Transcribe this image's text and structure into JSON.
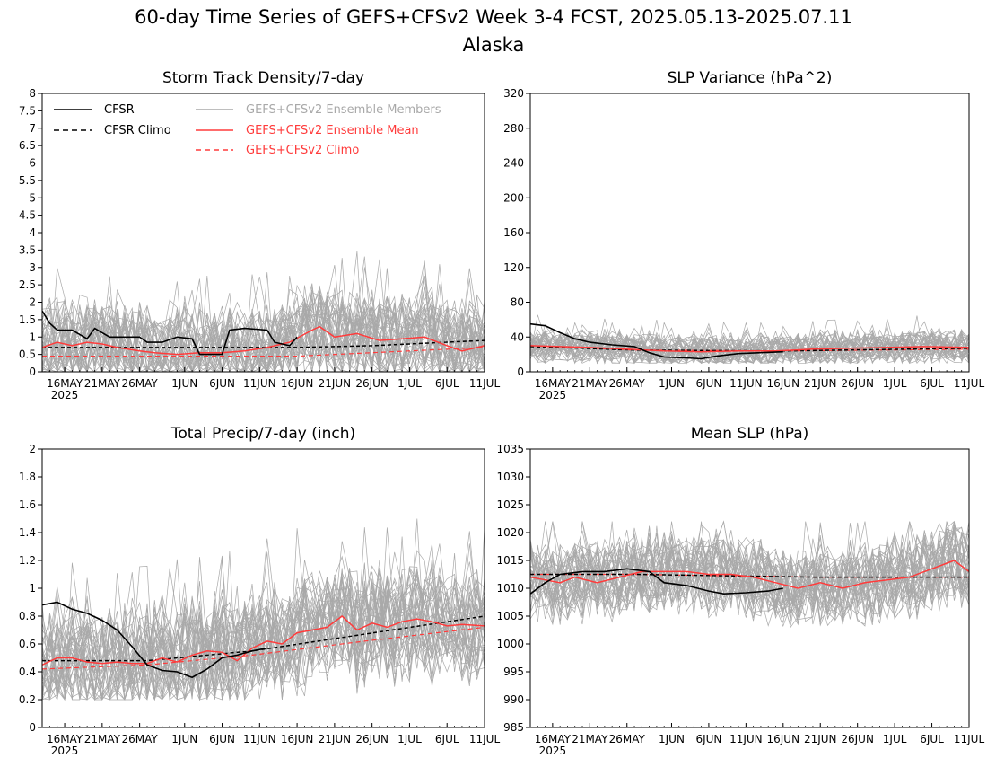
{
  "figure": {
    "title": "60-day Time Series of GEFS+CFSv2 Week 3-4 FCST, 2025.05.13-2025.07.11",
    "subtitle": "Alaska"
  },
  "colors": {
    "cfsr": "#000000",
    "members": "#a9a9a9",
    "ens_mean": "#ff3b3b",
    "gefs_climo": "#ff3b3b",
    "frame": "#000000"
  },
  "legend": {
    "cfsr": "CFSR",
    "cfsr_climo": "CFSR Climo",
    "members": "GEFS+CFSv2 Ensemble Members",
    "ens_mean": "GEFS+CFSv2 Ensemble Mean",
    "gefs_climo": "GEFS+CFSv2 Climo"
  },
  "x_axis": {
    "tick_labels": [
      "16MAY",
      "21MAY",
      "26MAY",
      "1JUN",
      "6JUN",
      "11JUN",
      "16JUN",
      "21JUN",
      "26JUN",
      "1JUL",
      "6JUL",
      "11JUL"
    ],
    "year_label": "2025"
  },
  "chart_data": [
    {
      "type": "line",
      "title": "Storm Track Density/7-day",
      "x_range": [
        "2025-05-13",
        "2025-07-11"
      ],
      "ylim": [
        0,
        8
      ],
      "y_ticks": [
        "0",
        "0.5",
        "1",
        "1.5",
        "2",
        "2.5",
        "3",
        "3.5",
        "4",
        "4.5",
        "5",
        "5.5",
        "6",
        "6.5",
        "7",
        "7.5",
        "8"
      ],
      "members_envelope": {
        "count": 40,
        "typical_min": 0.0,
        "typical_max": 3.0,
        "peak": 4.3
      },
      "series": [
        {
          "name": "CFSR",
          "points": [
            [
              "2025-05-13",
              1.75
            ],
            [
              "2025-05-14",
              1.4
            ],
            [
              "2025-05-15",
              1.2
            ],
            [
              "2025-05-17",
              1.2
            ],
            [
              "2025-05-19",
              0.95
            ],
            [
              "2025-05-20",
              1.25
            ],
            [
              "2025-05-22",
              1.0
            ],
            [
              "2025-05-26",
              1.0
            ],
            [
              "2025-05-27",
              0.85
            ],
            [
              "2025-05-29",
              0.85
            ],
            [
              "2025-05-31",
              1.0
            ],
            [
              "2025-06-02",
              0.95
            ],
            [
              "2025-06-03",
              0.5
            ],
            [
              "2025-06-06",
              0.5
            ],
            [
              "2025-06-07",
              1.2
            ],
            [
              "2025-06-09",
              1.25
            ],
            [
              "2025-06-12",
              1.2
            ],
            [
              "2025-06-13",
              0.85
            ],
            [
              "2025-06-15",
              0.75
            ],
            [
              "2025-06-16",
              1.0
            ]
          ]
        },
        {
          "name": "CFSR Climo",
          "points": [
            [
              "2025-05-13",
              0.7
            ],
            [
              "2025-05-26",
              0.7
            ],
            [
              "2025-06-16",
              0.7
            ],
            [
              "2025-06-26",
              0.75
            ],
            [
              "2025-07-11",
              0.9
            ]
          ]
        },
        {
          "name": "GEFS+CFSv2 Ensemble Mean",
          "points": [
            [
              "2025-05-13",
              0.7
            ],
            [
              "2025-05-15",
              0.85
            ],
            [
              "2025-05-17",
              0.75
            ],
            [
              "2025-05-19",
              0.85
            ],
            [
              "2025-05-21",
              0.8
            ],
            [
              "2025-05-23",
              0.7
            ],
            [
              "2025-05-26",
              0.6
            ],
            [
              "2025-05-28",
              0.55
            ],
            [
              "2025-05-31",
              0.5
            ],
            [
              "2025-06-03",
              0.55
            ],
            [
              "2025-06-06",
              0.55
            ],
            [
              "2025-06-09",
              0.6
            ],
            [
              "2025-06-12",
              0.7
            ],
            [
              "2025-06-15",
              0.85
            ],
            [
              "2025-06-18",
              1.2
            ],
            [
              "2025-06-19",
              1.3
            ],
            [
              "2025-06-21",
              1.0
            ],
            [
              "2025-06-24",
              1.1
            ],
            [
              "2025-06-27",
              0.9
            ],
            [
              "2025-06-30",
              0.95
            ],
            [
              "2025-07-03",
              1.0
            ],
            [
              "2025-07-06",
              0.75
            ],
            [
              "2025-07-08",
              0.6
            ],
            [
              "2025-07-11",
              0.75
            ]
          ]
        },
        {
          "name": "GEFS+CFSv2 Climo",
          "points": [
            [
              "2025-05-13",
              0.45
            ],
            [
              "2025-05-26",
              0.45
            ],
            [
              "2025-06-16",
              0.45
            ],
            [
              "2025-06-26",
              0.55
            ],
            [
              "2025-07-11",
              0.7
            ]
          ]
        }
      ]
    },
    {
      "type": "line",
      "title": "SLP Variance (hPa^2)",
      "x_range": [
        "2025-05-13",
        "2025-07-11"
      ],
      "ylim": [
        0,
        320
      ],
      "y_ticks": [
        "0",
        "40",
        "80",
        "120",
        "160",
        "200",
        "240",
        "280",
        "320"
      ],
      "members_envelope": {
        "count": 40,
        "typical_min": 10,
        "typical_max": 55,
        "peak": 78
      },
      "series": [
        {
          "name": "CFSR",
          "points": [
            [
              "2025-05-13",
              55
            ],
            [
              "2025-05-15",
              53
            ],
            [
              "2025-05-17",
              45
            ],
            [
              "2025-05-19",
              38
            ],
            [
              "2025-05-21",
              34
            ],
            [
              "2025-05-24",
              31
            ],
            [
              "2025-05-27",
              29
            ],
            [
              "2025-05-29",
              22
            ],
            [
              "2025-05-31",
              17
            ],
            [
              "2025-06-03",
              16
            ],
            [
              "2025-06-05",
              15
            ],
            [
              "2025-06-07",
              18
            ],
            [
              "2025-06-10",
              21
            ],
            [
              "2025-06-13",
              22
            ],
            [
              "2025-06-16",
              23
            ]
          ]
        },
        {
          "name": "CFSR Climo",
          "points": [
            [
              "2025-05-13",
              29
            ],
            [
              "2025-05-27",
              25
            ],
            [
              "2025-06-16",
              24
            ],
            [
              "2025-07-11",
              27
            ]
          ]
        },
        {
          "name": "GEFS+CFSv2 Ensemble Mean",
          "points": [
            [
              "2025-05-13",
              30
            ],
            [
              "2025-05-17",
              29
            ],
            [
              "2025-05-21",
              28
            ],
            [
              "2025-05-26",
              26
            ],
            [
              "2025-05-31",
              24
            ],
            [
              "2025-06-05",
              23
            ],
            [
              "2025-06-10",
              24
            ],
            [
              "2025-06-15",
              24
            ],
            [
              "2025-06-20",
              26
            ],
            [
              "2025-06-25",
              27
            ],
            [
              "2025-06-30",
              28
            ],
            [
              "2025-07-05",
              29
            ],
            [
              "2025-07-11",
              28
            ]
          ]
        },
        {
          "name": "GEFS+CFSv2 Climo",
          "points": [
            [
              "2025-05-13",
              30
            ],
            [
              "2025-05-27",
              25
            ],
            [
              "2025-06-16",
              24
            ],
            [
              "2025-07-11",
              26
            ]
          ]
        }
      ]
    },
    {
      "type": "line",
      "title": "Total Precip/7-day (inch)",
      "x_range": [
        "2025-05-13",
        "2025-07-11"
      ],
      "ylim": [
        0,
        2
      ],
      "y_ticks": [
        "0",
        "0.2",
        "0.4",
        "0.6",
        "0.8",
        "1",
        "1.2",
        "1.4",
        "1.6",
        "1.8",
        "2"
      ],
      "members_envelope": {
        "count": 40,
        "typical_min": 0.2,
        "typical_max": 1.15,
        "peak": 1.5
      },
      "series": [
        {
          "name": "CFSR",
          "points": [
            [
              "2025-05-13",
              0.88
            ],
            [
              "2025-05-15",
              0.9
            ],
            [
              "2025-05-17",
              0.85
            ],
            [
              "2025-05-19",
              0.82
            ],
            [
              "2025-05-21",
              0.77
            ],
            [
              "2025-05-23",
              0.7
            ],
            [
              "2025-05-25",
              0.58
            ],
            [
              "2025-05-27",
              0.45
            ],
            [
              "2025-05-29",
              0.41
            ],
            [
              "2025-05-31",
              0.4
            ],
            [
              "2025-06-02",
              0.36
            ],
            [
              "2025-06-04",
              0.42
            ],
            [
              "2025-06-06",
              0.5
            ],
            [
              "2025-06-08",
              0.52
            ],
            [
              "2025-06-10",
              0.55
            ],
            [
              "2025-06-12",
              0.57
            ]
          ]
        },
        {
          "name": "CFSR Climo",
          "points": [
            [
              "2025-05-13",
              0.48
            ],
            [
              "2025-05-27",
              0.48
            ],
            [
              "2025-06-10",
              0.55
            ],
            [
              "2025-06-25",
              0.67
            ],
            [
              "2025-07-11",
              0.8
            ]
          ]
        },
        {
          "name": "GEFS+CFSv2 Ensemble Mean",
          "points": [
            [
              "2025-05-13",
              0.45
            ],
            [
              "2025-05-15",
              0.5
            ],
            [
              "2025-05-17",
              0.5
            ],
            [
              "2025-05-19",
              0.47
            ],
            [
              "2025-05-21",
              0.46
            ],
            [
              "2025-05-23",
              0.47
            ],
            [
              "2025-05-25",
              0.46
            ],
            [
              "2025-05-27",
              0.46
            ],
            [
              "2025-05-29",
              0.5
            ],
            [
              "2025-05-31",
              0.47
            ],
            [
              "2025-06-02",
              0.52
            ],
            [
              "2025-06-04",
              0.55
            ],
            [
              "2025-06-06",
              0.54
            ],
            [
              "2025-06-08",
              0.48
            ],
            [
              "2025-06-10",
              0.57
            ],
            [
              "2025-06-12",
              0.62
            ],
            [
              "2025-06-14",
              0.6
            ],
            [
              "2025-06-16",
              0.68
            ],
            [
              "2025-06-18",
              0.7
            ],
            [
              "2025-06-20",
              0.72
            ],
            [
              "2025-06-22",
              0.8
            ],
            [
              "2025-06-24",
              0.7
            ],
            [
              "2025-06-26",
              0.75
            ],
            [
              "2025-06-28",
              0.72
            ],
            [
              "2025-06-30",
              0.76
            ],
            [
              "2025-07-02",
              0.78
            ],
            [
              "2025-07-04",
              0.76
            ],
            [
              "2025-07-06",
              0.73
            ],
            [
              "2025-07-08",
              0.74
            ],
            [
              "2025-07-11",
              0.73
            ]
          ]
        },
        {
          "name": "GEFS+CFSv2 Climo",
          "points": [
            [
              "2025-05-13",
              0.42
            ],
            [
              "2025-05-27",
              0.45
            ],
            [
              "2025-06-10",
              0.52
            ],
            [
              "2025-06-25",
              0.62
            ],
            [
              "2025-07-11",
              0.72
            ]
          ]
        }
      ]
    },
    {
      "type": "line",
      "title": "Mean SLP (hPa)",
      "x_range": [
        "2025-05-13",
        "2025-07-11"
      ],
      "ylim": [
        985,
        1035
      ],
      "y_ticks": [
        "985",
        "990",
        "995",
        "1000",
        "1005",
        "1010",
        "1015",
        "1020",
        "1025",
        "1030",
        "1035"
      ],
      "members_envelope": {
        "count": 40,
        "typical_min": 1003,
        "typical_max": 1020,
        "peak": 1022
      },
      "series": [
        {
          "name": "CFSR",
          "points": [
            [
              "2025-05-13",
              1009
            ],
            [
              "2025-05-15",
              1011
            ],
            [
              "2025-05-17",
              1012.5
            ],
            [
              "2025-05-20",
              1013
            ],
            [
              "2025-05-23",
              1013
            ],
            [
              "2025-05-26",
              1013.5
            ],
            [
              "2025-05-29",
              1013
            ],
            [
              "2025-05-31",
              1011
            ],
            [
              "2025-06-03",
              1010.5
            ],
            [
              "2025-06-06",
              1009.5
            ],
            [
              "2025-06-08",
              1009
            ],
            [
              "2025-06-11",
              1009.2
            ],
            [
              "2025-06-14",
              1009.5
            ],
            [
              "2025-06-16",
              1010
            ]
          ]
        },
        {
          "name": "CFSR Climo",
          "points": [
            [
              "2025-05-13",
              1012.5
            ],
            [
              "2025-05-27",
              1012.5
            ],
            [
              "2025-06-20",
              1012
            ],
            [
              "2025-07-11",
              1012
            ]
          ]
        },
        {
          "name": "GEFS+CFSv2 Ensemble Mean",
          "points": [
            [
              "2025-05-13",
              1012
            ],
            [
              "2025-05-15",
              1011.5
            ],
            [
              "2025-05-17",
              1011
            ],
            [
              "2025-05-19",
              1012
            ],
            [
              "2025-05-22",
              1011
            ],
            [
              "2025-05-25",
              1012
            ],
            [
              "2025-05-28",
              1013
            ],
            [
              "2025-05-31",
              1013
            ],
            [
              "2025-06-03",
              1013
            ],
            [
              "2025-06-06",
              1012.5
            ],
            [
              "2025-06-09",
              1012.5
            ],
            [
              "2025-06-12",
              1012
            ],
            [
              "2025-06-15",
              1011
            ],
            [
              "2025-06-18",
              1010
            ],
            [
              "2025-06-21",
              1011
            ],
            [
              "2025-06-24",
              1010
            ],
            [
              "2025-06-27",
              1011
            ],
            [
              "2025-06-30",
              1011.5
            ],
            [
              "2025-07-03",
              1012
            ],
            [
              "2025-07-06",
              1013.5
            ],
            [
              "2025-07-09",
              1015
            ],
            [
              "2025-07-11",
              1013
            ]
          ]
        },
        {
          "name": "GEFS+CFSv2 Climo",
          "points": [
            [
              "2025-05-13",
              1012.5
            ],
            [
              "2025-05-27",
              1012.5
            ],
            [
              "2025-06-20",
              1012
            ],
            [
              "2025-07-11",
              1012
            ]
          ]
        }
      ]
    }
  ]
}
